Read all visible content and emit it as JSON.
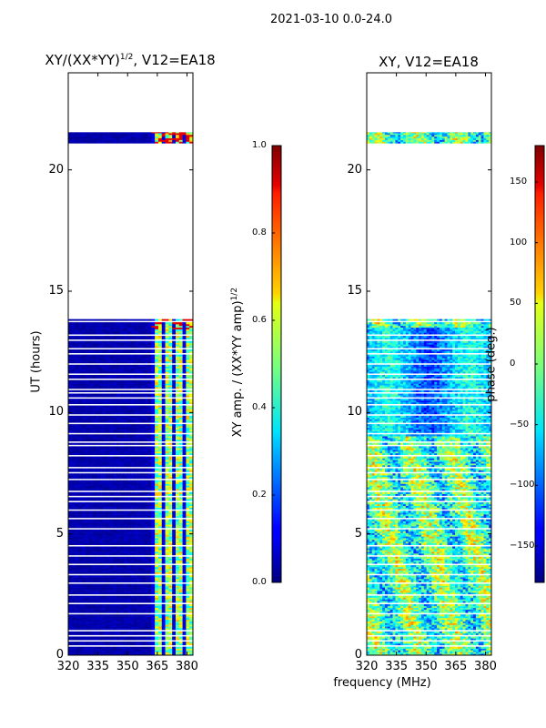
{
  "figure": {
    "supertitle": "2021-03-10 0.0-24.0",
    "xlabel_shared": "frequency (MHz)"
  },
  "chart_data": [
    {
      "type": "heatmap",
      "title": "XY/(XX*YY)^1/2, V12=EA18",
      "title_base": "XY/(XX*YY)",
      "title_sup": "1/2",
      "title_rest": ", V12=EA18",
      "xlabel": "frequency (MHz)",
      "ylabel": "UT (hours)",
      "xlim": [
        320,
        383
      ],
      "ylim": [
        0,
        24
      ],
      "xticks": [
        "320",
        "335",
        "350",
        "365",
        "380"
      ],
      "xtick_values": [
        320,
        335,
        350,
        365,
        380
      ],
      "yticks": [
        "0",
        "5",
        "10",
        "15",
        "20"
      ],
      "ytick_values": [
        0,
        5,
        10,
        15,
        20
      ],
      "colorbar": {
        "label_base": "XY amp. / (XX*YY amp)",
        "label_sup": "1/2",
        "ticks": [
          "0.0",
          "0.2",
          "0.4",
          "0.6",
          "0.8",
          "1.0"
        ],
        "tick_values": [
          0.0,
          0.2,
          0.4,
          0.6,
          0.8,
          1.0
        ],
        "range": [
          0.0,
          1.0
        ],
        "colormap": "jet"
      },
      "data_time_ranges_hours": [
        [
          0.0,
          13.85
        ],
        [
          21.1,
          21.55
        ]
      ],
      "active_band_mhz": [
        361,
        381
      ]
    },
    {
      "type": "heatmap",
      "title": "XY, V12=EA18",
      "xlabel": "frequency (MHz)",
      "ylabel": "",
      "xlim": [
        320,
        383
      ],
      "ylim": [
        0,
        24
      ],
      "xticks": [
        "320",
        "335",
        "350",
        "365",
        "380"
      ],
      "xtick_values": [
        320,
        335,
        350,
        365,
        380
      ],
      "yticks": [
        "0",
        "5",
        "10",
        "15",
        "20"
      ],
      "ytick_values": [
        0,
        5,
        10,
        15,
        20
      ],
      "colorbar": {
        "label": "phase (deg.)",
        "ticks": [
          "−150",
          "−100",
          "−50",
          "0",
          "50",
          "100",
          "150"
        ],
        "tick_values": [
          -150,
          -100,
          -50,
          0,
          50,
          100,
          150
        ],
        "range": [
          -180,
          180
        ],
        "colormap": "jet"
      },
      "data_time_ranges_hours": [
        [
          0.0,
          13.85
        ],
        [
          21.1,
          21.55
        ]
      ]
    }
  ]
}
